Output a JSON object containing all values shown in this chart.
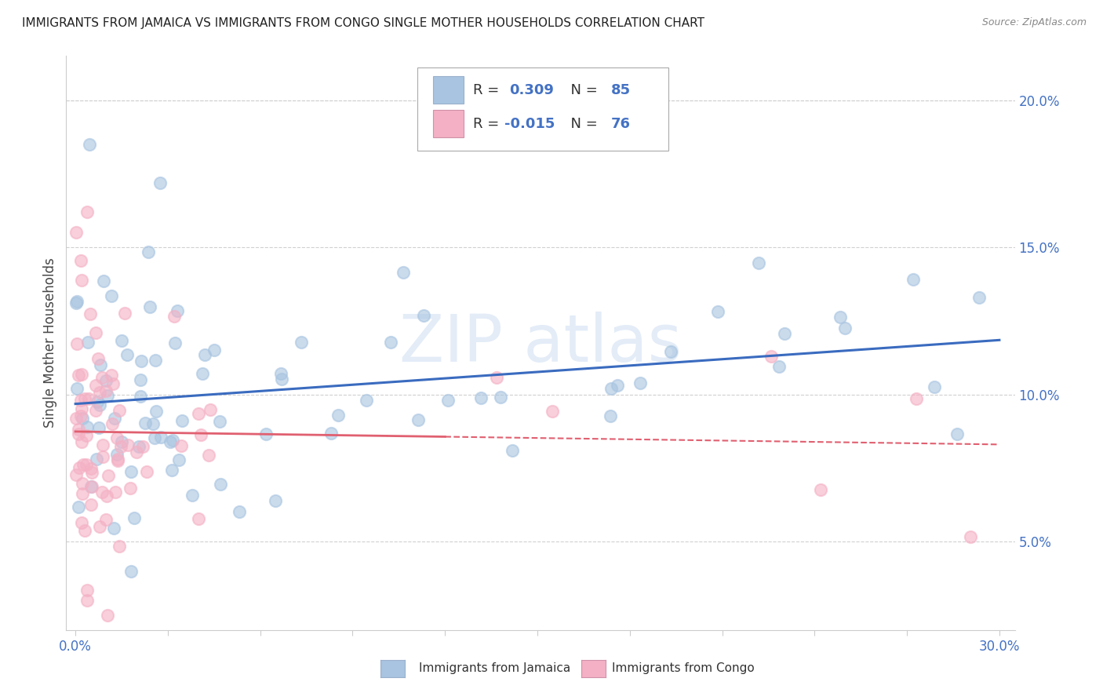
{
  "title": "IMMIGRANTS FROM JAMAICA VS IMMIGRANTS FROM CONGO SINGLE MOTHER HOUSEHOLDS CORRELATION CHART",
  "source": "Source: ZipAtlas.com",
  "ylabel": "Single Mother Households",
  "xlim": [
    0.0,
    0.3
  ],
  "ylim": [
    0.02,
    0.215
  ],
  "jamaica_R": 0.309,
  "jamaica_N": 85,
  "congo_R": -0.015,
  "congo_N": 76,
  "jamaica_color": "#a8c4e0",
  "congo_color": "#f4b0c4",
  "jamaica_line_color": "#3a6bbf",
  "congo_line_color": "#e06070",
  "text_color": "#4472c4",
  "background_color": "#ffffff",
  "grid_color": "#d0d0d0",
  "ytick_vals": [
    0.05,
    0.1,
    0.15,
    0.2
  ],
  "ytick_labels": [
    "5.0%",
    "10.0%",
    "15.0%",
    "20.0%"
  ],
  "xtick_vals": [
    0.0,
    0.03,
    0.06,
    0.09,
    0.12,
    0.15,
    0.18,
    0.21,
    0.24,
    0.27,
    0.3
  ],
  "watermark_text": "ZIP atlas",
  "legend_label_jamaica": "R =  0.309  N = 85",
  "legend_label_congo": "R = -0.015  N = 76",
  "bottom_legend_jamaica": "Immigrants from Jamaica",
  "bottom_legend_congo": "Immigrants from Congo"
}
